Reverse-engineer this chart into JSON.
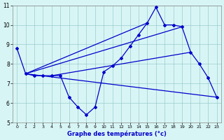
{
  "xlabel": "Graphe des températures (°c)",
  "x_hours": [
    0,
    1,
    2,
    3,
    4,
    5,
    6,
    7,
    8,
    9,
    10,
    11,
    12,
    13,
    14,
    15,
    16,
    17,
    18,
    19,
    20,
    21,
    22,
    23
  ],
  "main_line": [
    8.8,
    7.5,
    7.4,
    7.4,
    7.4,
    7.4,
    6.3,
    5.8,
    5.4,
    5.8,
    7.6,
    7.9,
    8.3,
    8.9,
    9.5,
    10.1,
    10.9,
    10.0,
    10.0,
    9.9,
    8.6,
    8.0,
    7.3,
    6.3
  ],
  "declining_line_x": [
    1,
    23
  ],
  "declining_line_y": [
    7.5,
    6.3
  ],
  "fan_line1_x": [
    1,
    15
  ],
  "fan_line1_y": [
    7.5,
    10.1
  ],
  "fan_line2_x": [
    1,
    19
  ],
  "fan_line2_y": [
    7.5,
    9.9
  ],
  "fan_line3_x": [
    4,
    20
  ],
  "fan_line3_y": [
    7.4,
    8.6
  ],
  "color": "#0000cc",
  "bg_color": "#d8f5f5",
  "grid_color": "#99cccc",
  "ylim": [
    5,
    11
  ],
  "xlim_min": -0.5,
  "xlim_max": 23.5,
  "yticks": [
    5,
    6,
    7,
    8,
    9,
    10,
    11
  ],
  "xticks": [
    0,
    1,
    2,
    3,
    4,
    5,
    6,
    7,
    8,
    9,
    10,
    11,
    12,
    13,
    14,
    15,
    16,
    17,
    18,
    19,
    20,
    21,
    22,
    23
  ]
}
